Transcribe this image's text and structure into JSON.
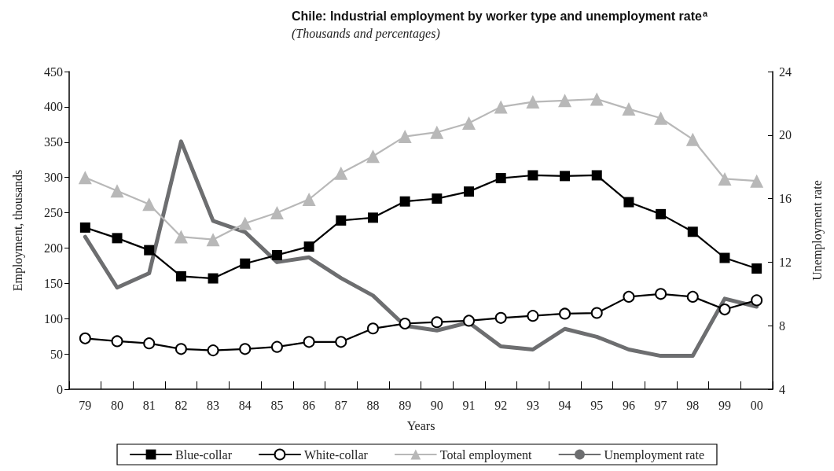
{
  "chart_data": {
    "type": "line",
    "title": "Chile: Industrial employment by worker type and unemployment rate$^{a}$",
    "subtitle": "(Thousands and percentages)",
    "xlabel": "Years",
    "ylabel": "Employment, thousands",
    "y2label": "Unemployment rate",
    "categories": [
      "79",
      "80",
      "81",
      "82",
      "83",
      "84",
      "85",
      "86",
      "87",
      "88",
      "89",
      "90",
      "91",
      "92",
      "93",
      "94",
      "95",
      "96",
      "97",
      "98",
      "99",
      "00"
    ],
    "series": [
      {
        "name": "Blue-collar",
        "color": "#000000",
        "marker": "square",
        "values": [
          229,
          214,
          197,
          160,
          157,
          178,
          190,
          202,
          239,
          243,
          266,
          270,
          280,
          299,
          303,
          302,
          303,
          265,
          248,
          223,
          186,
          171
        ]
      },
      {
        "name": "White-collar",
        "color": "#000000",
        "marker": "circle",
        "values": [
          72,
          68,
          65,
          57,
          55,
          57,
          60,
          67,
          67,
          86,
          93,
          95,
          97,
          101,
          104,
          107,
          108,
          131,
          135,
          131,
          113,
          126
        ]
      },
      {
        "name": "Total employment",
        "color": "#b8b8b8",
        "marker": "triangle",
        "values": [
          300,
          281,
          262,
          216,
          212,
          235,
          250,
          269,
          306,
          330,
          358,
          364,
          377,
          400,
          407,
          409,
          411,
          397,
          384,
          354,
          298,
          295
        ]
      },
      {
        "name": "Unemployment rate",
        "color": "#6d6e70",
        "marker": "none",
        "axis": "y2",
        "values": [
          13.6,
          10.4,
          11.3,
          19.6,
          14.6,
          13.9,
          12.0,
          12.3,
          11.0,
          9.9,
          8.0,
          7.7,
          8.2,
          6.7,
          6.5,
          7.8,
          7.3,
          6.5,
          6.1,
          6.1,
          9.7,
          9.2
        ]
      }
    ],
    "ylim": [
      0,
      450
    ],
    "yticks": [
      0,
      50,
      100,
      150,
      200,
      250,
      300,
      350,
      400,
      450
    ],
    "y2lim": [
      4,
      24
    ],
    "y2ticks": [
      4,
      8,
      12,
      16,
      20,
      24
    ],
    "grid": false,
    "legend": "bottom"
  }
}
